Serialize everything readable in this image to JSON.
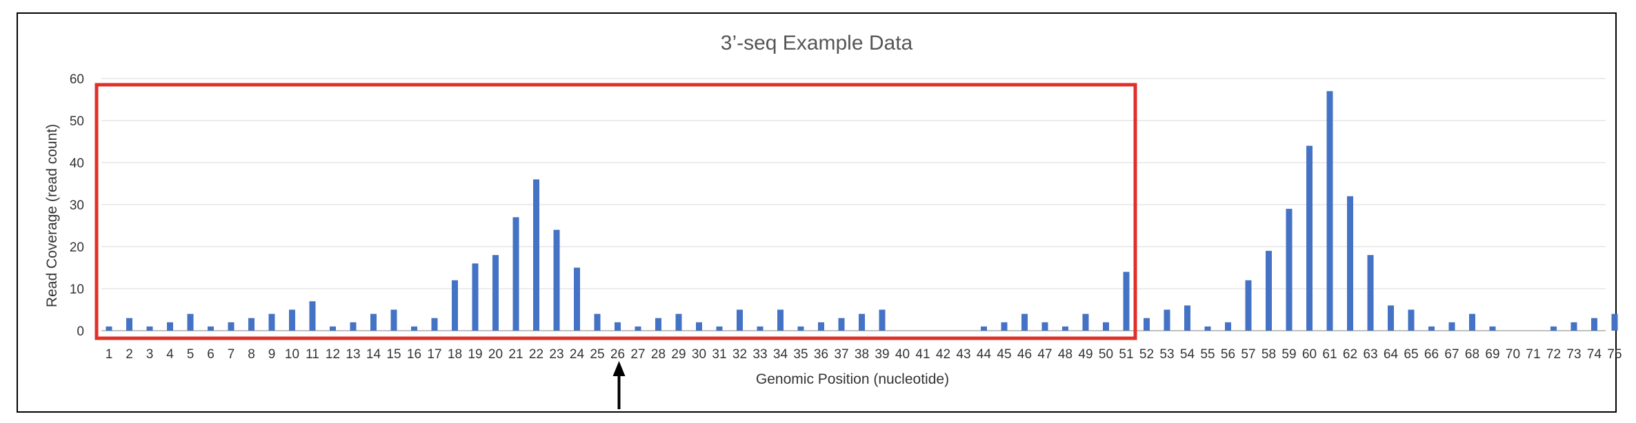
{
  "chart_data": {
    "type": "bar",
    "title": "3’-seq Example Data",
    "xlabel": "Genomic Position (nucleotide)",
    "ylabel": "Read Coverage (read count)",
    "ylim": [
      0,
      60
    ],
    "yticks": [
      0,
      10,
      20,
      30,
      40,
      50,
      60
    ],
    "grid": true,
    "categories": [
      "1",
      "2",
      "3",
      "4",
      "5",
      "6",
      "7",
      "8",
      "9",
      "10",
      "11",
      "12",
      "13",
      "14",
      "15",
      "16",
      "17",
      "18",
      "19",
      "20",
      "21",
      "22",
      "23",
      "24",
      "25",
      "26",
      "27",
      "28",
      "29",
      "30",
      "31",
      "32",
      "33",
      "34",
      "35",
      "36",
      "37",
      "38",
      "39",
      "40",
      "41",
      "42",
      "43",
      "44",
      "45",
      "46",
      "47",
      "48",
      "49",
      "50",
      "51",
      "52",
      "53",
      "54",
      "55",
      "56",
      "57",
      "58",
      "59",
      "60",
      "61",
      "62",
      "63",
      "64",
      "65",
      "66",
      "67",
      "68",
      "69",
      "70",
      "71",
      "72",
      "73",
      "74",
      "75"
    ],
    "values": [
      1,
      3,
      1,
      2,
      4,
      1,
      2,
      3,
      4,
      5,
      7,
      1,
      2,
      4,
      5,
      1,
      3,
      12,
      16,
      18,
      27,
      36,
      24,
      15,
      4,
      2,
      1,
      3,
      4,
      2,
      1,
      5,
      1,
      5,
      1,
      2,
      3,
      4,
      5,
      0,
      0,
      0,
      0,
      1,
      2,
      4,
      2,
      1,
      4,
      2,
      14,
      3,
      5,
      6,
      1,
      2,
      12,
      19,
      29,
      44,
      57,
      32,
      18,
      6,
      5,
      1,
      2,
      4,
      1,
      0,
      0,
      1,
      2,
      3,
      4
    ],
    "bar_color": "#4472c4",
    "annotations": {
      "highlight_box": {
        "from_position": "1",
        "to_position": "51",
        "color": "#e0302a"
      },
      "arrow": {
        "at_position": "26",
        "color": "#000000"
      }
    }
  }
}
